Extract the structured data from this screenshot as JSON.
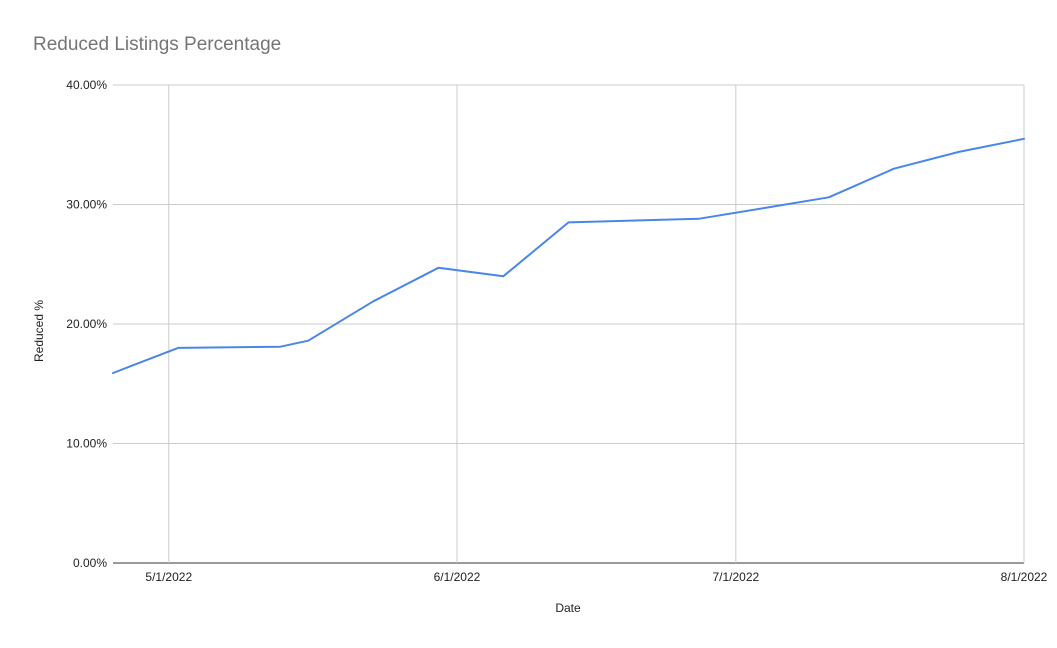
{
  "chart_data": {
    "type": "line",
    "title": "Reduced Listings Percentage",
    "xlabel": "Date",
    "ylabel": "Reduced %",
    "x_ticks": [
      "5/1/2022",
      "6/1/2022",
      "7/1/2022",
      "8/1/2022"
    ],
    "y_ticks": [
      "0.00%",
      "10.00%",
      "20.00%",
      "30.00%",
      "40.00%"
    ],
    "ylim": [
      0,
      40
    ],
    "xlim": [
      "2022-04-25",
      "2022-08-01"
    ],
    "grid": true,
    "legend": "none",
    "series": [
      {
        "color": "#4a86e8",
        "points": [
          {
            "x": "2022-04-25",
            "y": 15.9
          },
          {
            "x": "2022-05-02",
            "y": 18.0
          },
          {
            "x": "2022-05-13",
            "y": 18.1
          },
          {
            "x": "2022-05-16",
            "y": 18.6
          },
          {
            "x": "2022-05-23",
            "y": 21.9
          },
          {
            "x": "2022-05-30",
            "y": 24.7
          },
          {
            "x": "2022-06-06",
            "y": 24.0
          },
          {
            "x": "2022-06-13",
            "y": 28.5
          },
          {
            "x": "2022-06-27",
            "y": 28.8
          },
          {
            "x": "2022-07-04",
            "y": 29.7
          },
          {
            "x": "2022-07-11",
            "y": 30.6
          },
          {
            "x": "2022-07-18",
            "y": 33.0
          },
          {
            "x": "2022-07-25",
            "y": 34.4
          },
          {
            "x": "2022-08-01",
            "y": 35.5
          }
        ]
      }
    ]
  }
}
